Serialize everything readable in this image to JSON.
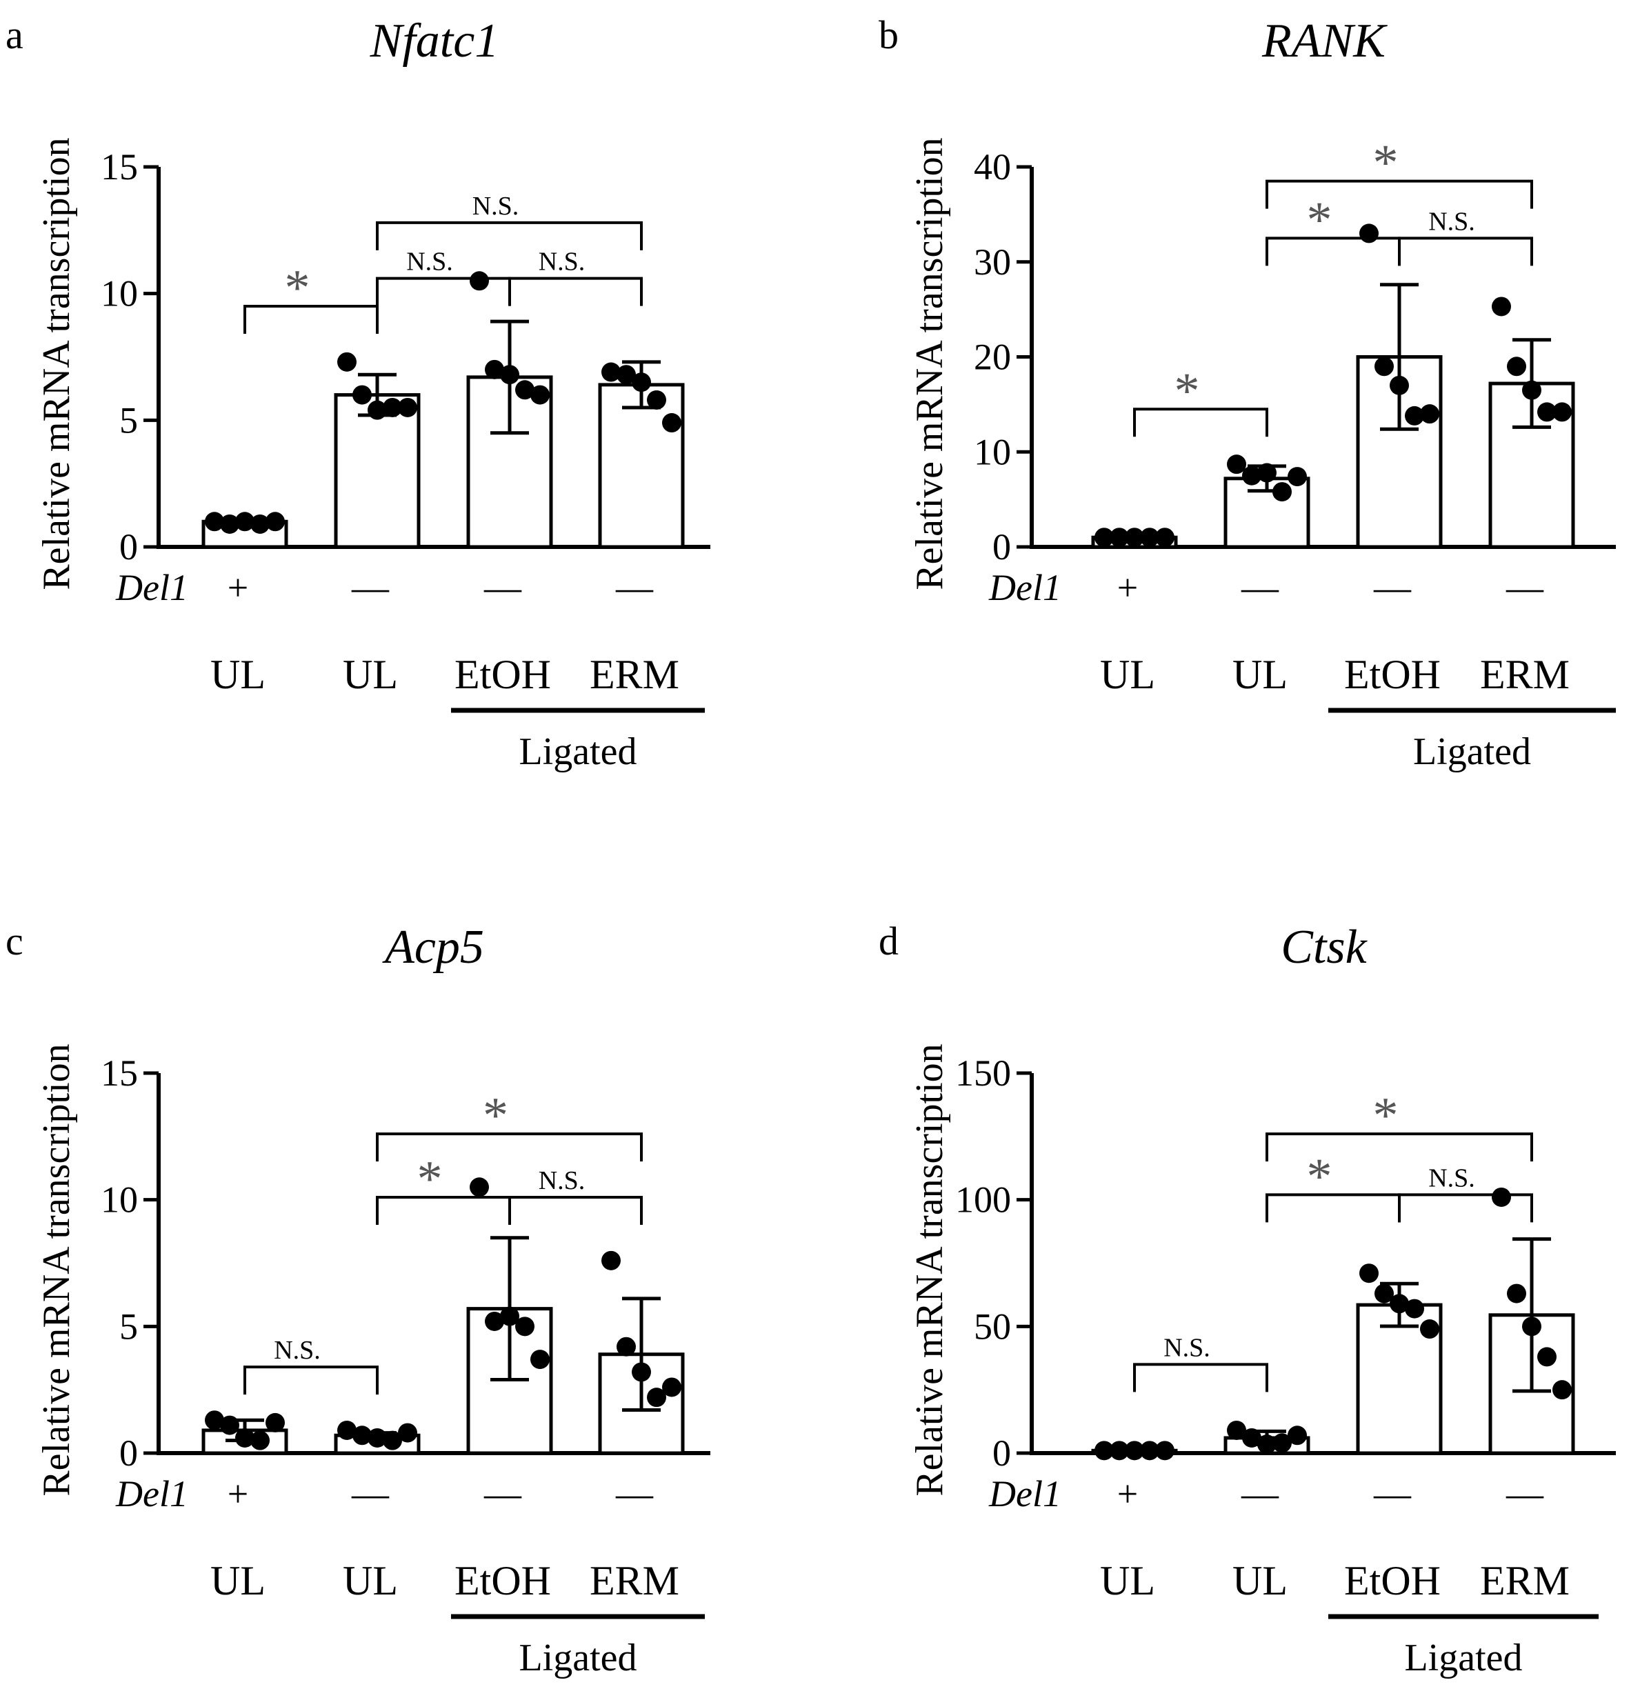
{
  "chart_data": [
    {
      "type": "bar",
      "panel": "a",
      "title": "Nfatc1",
      "ylabel": "Relative mRNA transcription",
      "ylim": [
        0,
        15
      ],
      "yticks": [
        "0",
        "5",
        "10",
        "15"
      ],
      "row_label": "Del1",
      "signs": [
        "+",
        "—",
        "—",
        "—"
      ],
      "categories": [
        "UL",
        "UL",
        "EtOH",
        "ERM"
      ],
      "group_label": "Ligated",
      "values": [
        1.0,
        6.0,
        6.7,
        6.4
      ],
      "errors": [
        0,
        0.8,
        2.2,
        0.9
      ],
      "points": [
        [
          1,
          0.9,
          1,
          0.9,
          1
        ],
        [
          7.3,
          6,
          5.4,
          5.5,
          5.5
        ],
        [
          10.5,
          7,
          6.8,
          6.2,
          6
        ],
        [
          6.9,
          6.8,
          6.5,
          5.8,
          4.9
        ]
      ],
      "annotations": [
        {
          "from": 0,
          "to": 1,
          "label": "*",
          "y": 9.5
        },
        {
          "from": 1,
          "to": 2,
          "label": "N.S.",
          "y": 10.6
        },
        {
          "from": 2,
          "to": 3,
          "label": "N.S.",
          "y": 10.6
        },
        {
          "from": 1,
          "to": 3,
          "label": "N.S.",
          "y": 12.8
        }
      ]
    },
    {
      "type": "bar",
      "panel": "b",
      "title": "RANK",
      "ylabel": "Relative mRNA transcription",
      "ylim": [
        0,
        40
      ],
      "yticks": [
        "0",
        "10",
        "20",
        "30",
        "40"
      ],
      "row_label": "Del1",
      "signs": [
        "+",
        "—",
        "—",
        "—"
      ],
      "categories": [
        "UL",
        "UL",
        "EtOH",
        "ERM"
      ],
      "group_label": "Ligated",
      "values": [
        1.0,
        7.2,
        20.0,
        17.2
      ],
      "errors": [
        0,
        1.3,
        7.6,
        4.6
      ],
      "points": [
        [
          1,
          1,
          1,
          1,
          1
        ],
        [
          8.7,
          7.5,
          7.8,
          5.8,
          7.4
        ],
        [
          33,
          19,
          17,
          13.8,
          14
        ],
        [
          25.3,
          19,
          16.5,
          14.2,
          14.2
        ]
      ],
      "annotations": [
        {
          "from": 0,
          "to": 1,
          "label": "*",
          "y": 14.5
        },
        {
          "from": 1,
          "to": 2,
          "label": "*",
          "y": 32.5
        },
        {
          "from": 2,
          "to": 3,
          "label": "N.S.",
          "y": 32.5
        },
        {
          "from": 1,
          "to": 3,
          "label": "*",
          "y": 38.5
        }
      ]
    },
    {
      "type": "bar",
      "panel": "c",
      "title": "Acp5",
      "ylabel": "Relative mRNA transcription",
      "ylim": [
        0,
        15
      ],
      "yticks": [
        "0",
        "5",
        "10",
        "15"
      ],
      "row_label": "Del1",
      "signs": [
        "+",
        "—",
        "—",
        "—"
      ],
      "categories": [
        "UL",
        "UL",
        "EtOH",
        "ERM"
      ],
      "group_label": "Ligated",
      "values": [
        0.9,
        0.7,
        5.7,
        3.9
      ],
      "errors": [
        0.4,
        0.1,
        2.8,
        2.2
      ],
      "points": [
        [
          1.3,
          1.1,
          0.6,
          0.5,
          1.2
        ],
        [
          0.9,
          0.7,
          0.6,
          0.5,
          0.8
        ],
        [
          10.5,
          5.2,
          5.4,
          5,
          3.7
        ],
        [
          7.6,
          4.2,
          3.2,
          2.2,
          2.6
        ]
      ],
      "annotations": [
        {
          "from": 0,
          "to": 1,
          "label": "N.S.",
          "y": 3.4
        },
        {
          "from": 1,
          "to": 2,
          "label": "*",
          "y": 10.1
        },
        {
          "from": 2,
          "to": 3,
          "label": "N.S.",
          "y": 10.1
        },
        {
          "from": 1,
          "to": 3,
          "label": "*",
          "y": 12.6
        }
      ]
    },
    {
      "type": "bar",
      "panel": "d",
      "title": "Ctsk",
      "ylabel": "Relative mRNA transcription",
      "ylim": [
        0,
        150
      ],
      "yticks": [
        "0",
        "50",
        "100",
        "150"
      ],
      "row_label": "Del1",
      "signs": [
        "+",
        "—",
        "—",
        "—"
      ],
      "categories": [
        "UL",
        "UL",
        "EtOH",
        "ERM"
      ],
      "group_label": "Ligated",
      "values": [
        1.0,
        6.0,
        58.5,
        54.5
      ],
      "errors": [
        0,
        2.6,
        8.4,
        30.0
      ],
      "points": [
        [
          1,
          1,
          1,
          1,
          1
        ],
        [
          9,
          6,
          3.5,
          4,
          7
        ],
        [
          71,
          63,
          59,
          57,
          49
        ],
        [
          101,
          63,
          50,
          38,
          25
        ]
      ],
      "annotations": [
        {
          "from": 0,
          "to": 1,
          "label": "N.S.",
          "y": 35
        },
        {
          "from": 1,
          "to": 2,
          "label": "*",
          "y": 102
        },
        {
          "from": 2,
          "to": 3,
          "label": "N.S.",
          "y": 102
        },
        {
          "from": 1,
          "to": 3,
          "label": "*",
          "y": 126
        }
      ]
    }
  ]
}
